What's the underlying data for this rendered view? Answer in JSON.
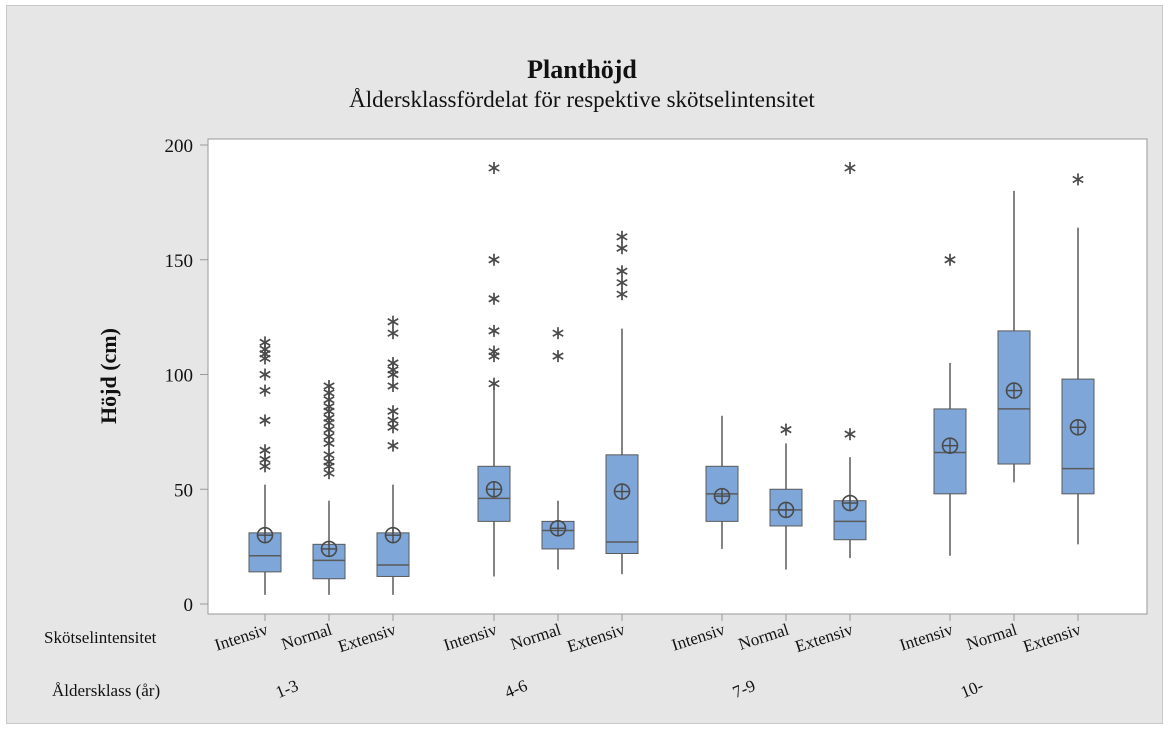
{
  "chart_data": {
    "type": "boxplot",
    "title": "Planthöjd",
    "subtitle": "Åldersklassfördelat för respektive skötselintensitet",
    "ylabel": "Höjd (cm)",
    "ylim": [
      0,
      200
    ],
    "yticks": [
      0,
      50,
      100,
      150,
      200
    ],
    "x_row_labels": {
      "inner": "Skötselintensitet",
      "outer": "Åldersklass (år)"
    },
    "groups": [
      "1-3",
      "4-6",
      "7-9",
      "10-"
    ],
    "categories": [
      "Intensiv",
      "Normal",
      "Extensiv"
    ],
    "colors": {
      "box_fill": "#7ea6d8",
      "box_stroke": "#5a5a5a",
      "whisker": "#5a5a5a",
      "outlier": "#4a4a4a",
      "plot_background": "#ffffff",
      "frame_background": "#e6e6e6"
    },
    "boxes": [
      {
        "group": "1-3",
        "category": "Intensiv",
        "min": 4,
        "q1": 14,
        "median": 21,
        "q3": 31,
        "max": 52,
        "mean": 30,
        "outliers": [
          60,
          63,
          67,
          80,
          93,
          100,
          107,
          109,
          111,
          114
        ]
      },
      {
        "group": "1-3",
        "category": "Normal",
        "min": 4,
        "q1": 11,
        "median": 19,
        "q3": 26,
        "max": 45,
        "mean": 24,
        "outliers": [
          57,
          60,
          62,
          65,
          70,
          73,
          76,
          79,
          81,
          84,
          86,
          89,
          92,
          95
        ]
      },
      {
        "group": "1-3",
        "category": "Extensiv",
        "min": 4,
        "q1": 12,
        "median": 17,
        "q3": 31,
        "max": 52,
        "mean": 30,
        "outliers": [
          69,
          77,
          80,
          84,
          95,
          100,
          102,
          105,
          118,
          123
        ]
      },
      {
        "group": "4-6",
        "category": "Intensiv",
        "min": 12,
        "q1": 36,
        "median": 46,
        "q3": 60,
        "max": 94,
        "mean": 50,
        "outliers": [
          96,
          108,
          110,
          119,
          133,
          150,
          190
        ]
      },
      {
        "group": "4-6",
        "category": "Normal",
        "min": 15,
        "q1": 24,
        "median": 32,
        "q3": 36,
        "max": 45,
        "mean": 33,
        "outliers": [
          108,
          118
        ]
      },
      {
        "group": "4-6",
        "category": "Extensiv",
        "min": 13,
        "q1": 22,
        "median": 27,
        "q3": 65,
        "max": 120,
        "mean": 49,
        "outliers": [
          135,
          140,
          145,
          155,
          160
        ]
      },
      {
        "group": "7-9",
        "category": "Intensiv",
        "min": 24,
        "q1": 36,
        "median": 48,
        "q3": 60,
        "max": 82,
        "mean": 47,
        "outliers": []
      },
      {
        "group": "7-9",
        "category": "Normal",
        "min": 15,
        "q1": 34,
        "median": 41,
        "q3": 50,
        "max": 70,
        "mean": 41,
        "outliers": [
          76
        ]
      },
      {
        "group": "7-9",
        "category": "Extensiv",
        "min": 20,
        "q1": 28,
        "median": 36,
        "q3": 45,
        "max": 64,
        "mean": 44,
        "outliers": [
          74,
          190
        ]
      },
      {
        "group": "10-",
        "category": "Intensiv",
        "min": 21,
        "q1": 48,
        "median": 66,
        "q3": 85,
        "max": 105,
        "mean": 69,
        "outliers": [
          150
        ]
      },
      {
        "group": "10-",
        "category": "Normal",
        "min": 53,
        "q1": 61,
        "median": 85,
        "q3": 119,
        "max": 180,
        "mean": 93,
        "outliers": []
      },
      {
        "group": "10-",
        "category": "Extensiv",
        "min": 26,
        "q1": 48,
        "median": 59,
        "q3": 98,
        "max": 164,
        "mean": 77,
        "outliers": [
          185
        ]
      }
    ]
  }
}
